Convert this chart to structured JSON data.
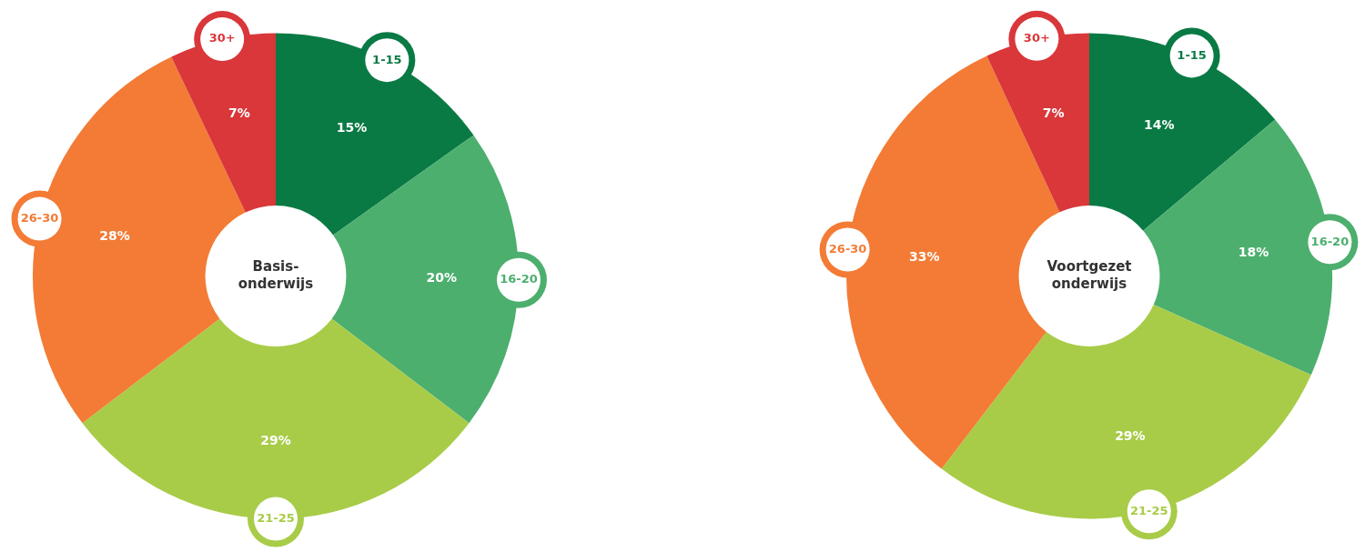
{
  "chart_data": [
    {
      "type": "donut",
      "title": "Basis-onderwijs",
      "categories": [
        "1-15",
        "16-20",
        "21-25",
        "26-30",
        "30+"
      ],
      "values": [
        15,
        20,
        29,
        28,
        7
      ],
      "value_labels": [
        "15%",
        "20%",
        "29%",
        "28%",
        "7%"
      ],
      "colors": [
        "#0a7a45",
        "#4caf6e",
        "#a8cc48",
        "#f37b35",
        "#d9373a"
      ],
      "legend": false
    },
    {
      "type": "donut",
      "title": "Voortgezet onderwijs",
      "categories": [
        "1-15",
        "16-20",
        "21-25",
        "26-30",
        "30+"
      ],
      "values": [
        14,
        18,
        29,
        33,
        7
      ],
      "value_labels": [
        "14%",
        "18%",
        "29%",
        "33%",
        "7%"
      ],
      "colors": [
        "#0a7a45",
        "#4caf6e",
        "#a8cc48",
        "#f37b35",
        "#d9373a"
      ],
      "legend": false
    }
  ]
}
